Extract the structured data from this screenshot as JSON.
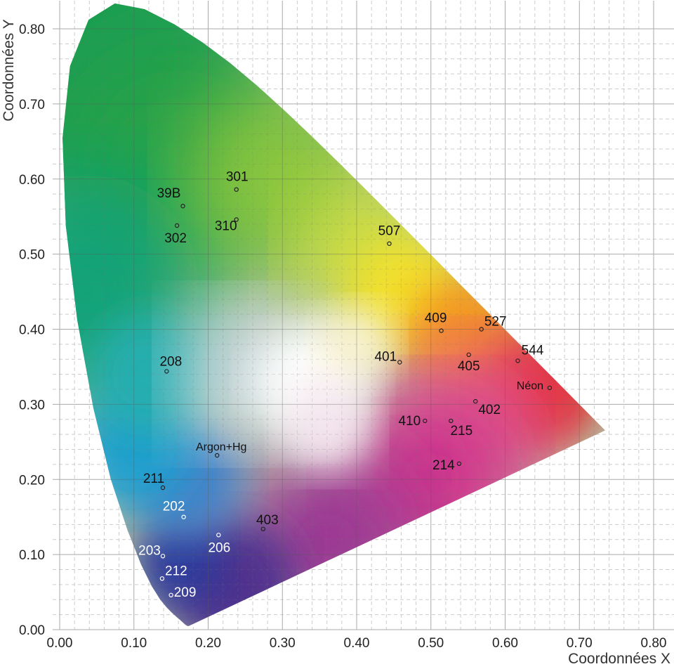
{
  "chart_data": {
    "type": "scatter",
    "title": "",
    "xlabel": "Coordonnées X",
    "ylabel": "Coordonnées Y",
    "xlim": [
      0,
      0.8
    ],
    "ylim": [
      0,
      0.8
    ],
    "xticks": [
      "0.00",
      "0.10",
      "0.20",
      "0.30",
      "0.40",
      "0.50",
      "0.60",
      "0.70",
      "0.80"
    ],
    "yticks": [
      "0.00",
      "0.10",
      "0.20",
      "0.30",
      "0.40",
      "0.50",
      "0.60",
      "0.70",
      "0.80"
    ],
    "grid": true,
    "background": "CIE 1931 chromaticity diagram",
    "colors": {
      "label_dark": "#111111",
      "label_light": "#ffffff",
      "grid_major": "#aaaaaa",
      "grid_minor": "#cccccc"
    },
    "points": [
      {
        "label": "301",
        "x": 0.238,
        "y": 0.586,
        "label_color": "dark"
      },
      {
        "label": "39B",
        "x": 0.166,
        "y": 0.564,
        "label_color": "dark"
      },
      {
        "label": "302",
        "x": 0.158,
        "y": 0.538,
        "label_color": "dark"
      },
      {
        "label": "310",
        "x": 0.238,
        "y": 0.546,
        "label_color": "dark"
      },
      {
        "label": "507",
        "x": 0.444,
        "y": 0.514,
        "label_color": "dark"
      },
      {
        "label": "409",
        "x": 0.514,
        "y": 0.398,
        "label_color": "dark"
      },
      {
        "label": "527",
        "x": 0.568,
        "y": 0.4,
        "label_color": "dark"
      },
      {
        "label": "401",
        "x": 0.458,
        "y": 0.356,
        "label_color": "dark"
      },
      {
        "label": "405",
        "x": 0.551,
        "y": 0.366,
        "label_color": "dark"
      },
      {
        "label": "544",
        "x": 0.617,
        "y": 0.358,
        "label_color": "dark"
      },
      {
        "label": "208",
        "x": 0.144,
        "y": 0.344,
        "label_color": "dark"
      },
      {
        "label": "Néon",
        "x": 0.66,
        "y": 0.322,
        "label_color": "dark"
      },
      {
        "label": "402",
        "x": 0.56,
        "y": 0.304,
        "label_color": "dark"
      },
      {
        "label": "410",
        "x": 0.492,
        "y": 0.278,
        "label_color": "dark"
      },
      {
        "label": "215",
        "x": 0.527,
        "y": 0.278,
        "label_color": "dark"
      },
      {
        "label": "214",
        "x": 0.538,
        "y": 0.221,
        "label_color": "dark"
      },
      {
        "label": "Argon+Hg",
        "x": 0.212,
        "y": 0.232,
        "label_color": "dark"
      },
      {
        "label": "211",
        "x": 0.139,
        "y": 0.189,
        "label_color": "dark"
      },
      {
        "label": "202",
        "x": 0.167,
        "y": 0.15,
        "label_color": "light"
      },
      {
        "label": "403",
        "x": 0.274,
        "y": 0.134,
        "label_color": "dark"
      },
      {
        "label": "206",
        "x": 0.214,
        "y": 0.126,
        "label_color": "light"
      },
      {
        "label": "203",
        "x": 0.139,
        "y": 0.098,
        "label_color": "light"
      },
      {
        "label": "212",
        "x": 0.138,
        "y": 0.068,
        "label_color": "light"
      },
      {
        "label": "209",
        "x": 0.15,
        "y": 0.046,
        "label_color": "light"
      }
    ]
  }
}
